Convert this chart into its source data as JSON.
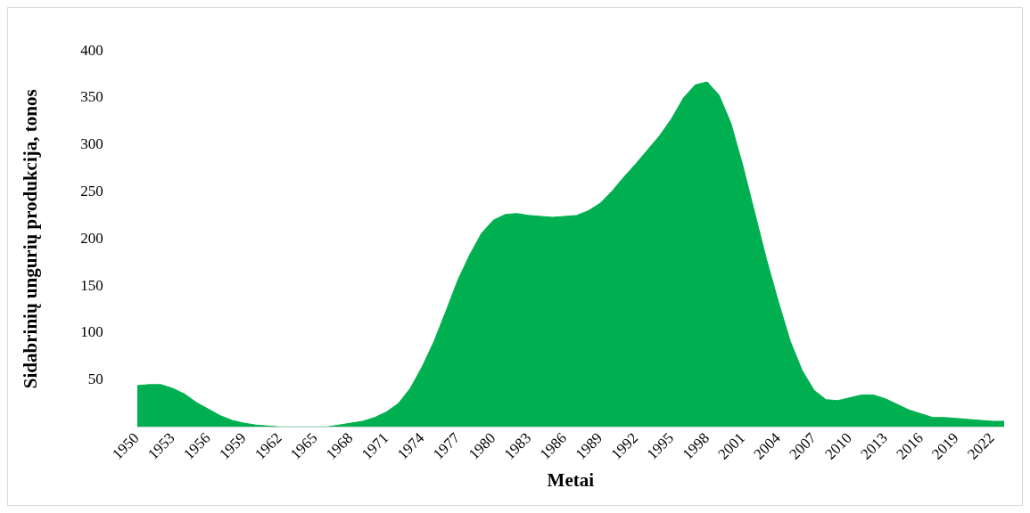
{
  "chart_data": {
    "type": "area",
    "xlabel": "Metai",
    "ylabel": "Sidabrinių ungurių produkcija, tonos",
    "categories": [
      "1950",
      null,
      null,
      "1953",
      null,
      null,
      "1956",
      null,
      null,
      "1959",
      null,
      null,
      "1962",
      null,
      null,
      "1965",
      null,
      null,
      "1968",
      null,
      null,
      "1971",
      null,
      null,
      "1974",
      null,
      null,
      "1977",
      null,
      null,
      "1980",
      null,
      null,
      "1983",
      null,
      null,
      "1986",
      null,
      null,
      "1989",
      null,
      null,
      "1992",
      null,
      null,
      "1995",
      null,
      null,
      "1998",
      null,
      null,
      "2001",
      null,
      null,
      "2004",
      null,
      null,
      "2007",
      null,
      null,
      "2010",
      null,
      null,
      "2013",
      null,
      null,
      "2016",
      null,
      null,
      "2019",
      null,
      null,
      "2022",
      null
    ],
    "series": [
      {
        "color": "#00b050",
        "values": [
          44,
          45,
          45,
          41,
          35,
          26,
          19,
          12,
          7,
          4,
          2,
          1,
          0,
          0,
          0,
          0,
          0,
          2,
          4,
          6,
          10,
          16,
          25,
          41,
          64,
          91,
          123,
          156,
          183,
          206,
          220,
          226,
          227,
          225,
          224,
          223,
          224,
          225,
          230,
          238,
          251,
          266,
          280,
          295,
          310,
          328,
          350,
          364,
          367,
          353,
          323,
          278,
          228,
          178,
          133,
          91,
          60,
          39,
          29,
          28,
          31,
          34,
          34,
          30,
          24,
          18,
          14,
          10,
          10,
          9,
          8,
          7,
          6,
          6
        ]
      }
    ],
    "ylim": [
      0,
      400
    ],
    "yticks": [
      50,
      100,
      150,
      200,
      250,
      300,
      350,
      400
    ],
    "grid": false,
    "legend": false
  }
}
